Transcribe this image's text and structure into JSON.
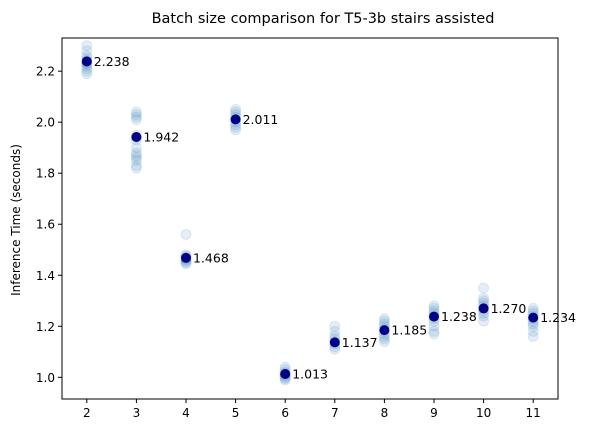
{
  "chart_data": {
    "type": "scatter",
    "title": "Batch size comparison for T5-3b stairs assisted",
    "xlabel": "",
    "ylabel": "Inference Time (seconds)",
    "x_ticks": [
      2,
      3,
      4,
      5,
      6,
      7,
      8,
      9,
      10,
      11
    ],
    "y_ticks": [
      1.0,
      1.2,
      1.4,
      1.6,
      1.8,
      2.0,
      2.2
    ],
    "y_tick_labels": [
      "1.0",
      "1.2",
      "1.4",
      "1.6",
      "1.8",
      "2.0",
      "2.2"
    ],
    "xlim": [
      1.5,
      11.5
    ],
    "ylim": [
      0.915,
      2.33
    ],
    "grid": false,
    "colors": {
      "raw": "#1f77b4",
      "mean": "#00008b"
    },
    "series": [
      {
        "values": [
          {
            "x": 2,
            "samples": [
              2.3,
              2.28,
              2.26,
              2.25,
              2.24,
              2.23,
              2.22,
              2.21,
              2.2,
              2.19,
              2.24,
              2.23
            ]
          },
          {
            "x": 3,
            "samples": [
              2.04,
              2.03,
              2.02,
              2.01,
              1.95,
              1.94,
              1.93,
              1.9,
              1.88,
              1.87,
              1.86,
              1.85,
              1.83,
              1.82
            ]
          },
          {
            "x": 4,
            "samples": [
              1.56,
              1.48,
              1.475,
              1.47,
              1.465,
              1.46,
              1.455,
              1.45,
              1.445
            ]
          },
          {
            "x": 5,
            "samples": [
              2.05,
              2.04,
              2.03,
              2.02,
              2.01,
              2.0,
              1.99,
              1.98,
              1.97
            ]
          },
          {
            "x": 6,
            "samples": [
              1.04,
              1.03,
              1.02,
              1.015,
              1.01,
              1.005,
              1.0,
              0.995,
              0.99
            ]
          },
          {
            "x": 7,
            "samples": [
              1.2,
              1.18,
              1.16,
              1.15,
              1.14,
              1.13,
              1.12,
              1.11
            ]
          },
          {
            "x": 8,
            "samples": [
              1.23,
              1.22,
              1.21,
              1.2,
              1.19,
              1.18,
              1.17,
              1.16,
              1.15,
              1.14
            ]
          },
          {
            "x": 9,
            "samples": [
              1.28,
              1.27,
              1.26,
              1.25,
              1.24,
              1.23,
              1.22,
              1.2,
              1.18,
              1.17
            ]
          },
          {
            "x": 10,
            "samples": [
              1.35,
              1.31,
              1.3,
              1.29,
              1.28,
              1.27,
              1.26,
              1.25,
              1.24,
              1.22
            ]
          },
          {
            "x": 11,
            "samples": [
              1.27,
              1.26,
              1.25,
              1.24,
              1.23,
              1.22,
              1.21,
              1.2,
              1.18,
              1.16
            ]
          }
        ]
      },
      {
        "values": [
          {
            "x": 2,
            "y": 2.238,
            "label": "2.238"
          },
          {
            "x": 3,
            "y": 1.942,
            "label": "1.942"
          },
          {
            "x": 4,
            "y": 1.468,
            "label": "1.468"
          },
          {
            "x": 5,
            "y": 2.011,
            "label": "2.011"
          },
          {
            "x": 6,
            "y": 1.013,
            "label": "1.013"
          },
          {
            "x": 7,
            "y": 1.137,
            "label": "1.137"
          },
          {
            "x": 8,
            "y": 1.185,
            "label": "1.185"
          },
          {
            "x": 9,
            "y": 1.238,
            "label": "1.238"
          },
          {
            "x": 10,
            "y": 1.27,
            "label": "1.270"
          },
          {
            "x": 11,
            "y": 1.234,
            "label": "1.234"
          }
        ]
      }
    ]
  }
}
